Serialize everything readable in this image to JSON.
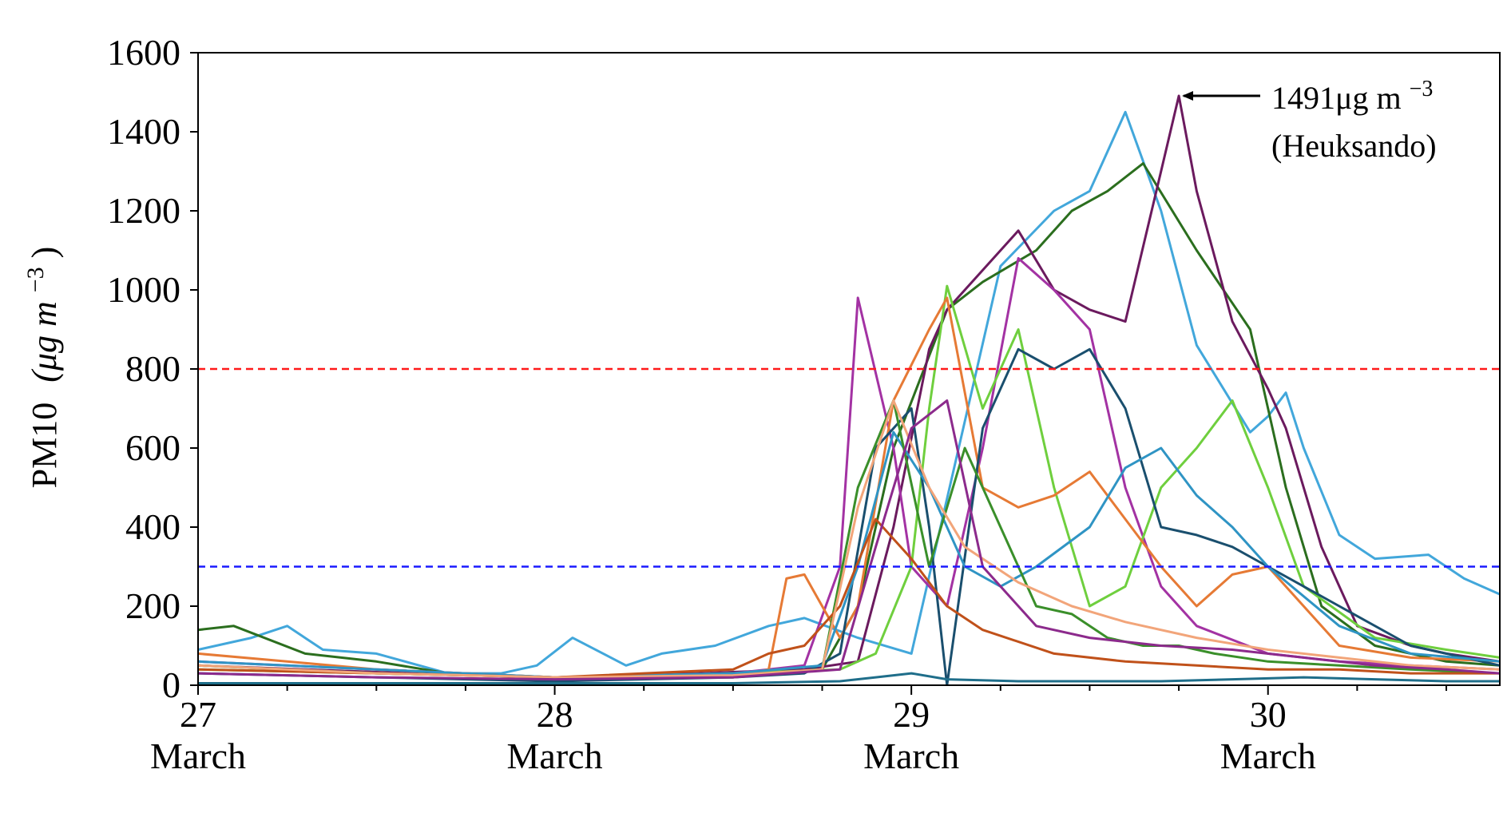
{
  "chart_data": {
    "type": "line",
    "title": "",
    "ylabel_main": "PM10",
    "ylabel_unit": "(μg m",
    "ylabel_exp": "−3",
    "ylabel_close": ")",
    "ylim": [
      0,
      1600
    ],
    "xlim": [
      0,
      3.65
    ],
    "grid": false,
    "yticks": [
      0,
      200,
      400,
      600,
      800,
      1000,
      1200,
      1400,
      1600
    ],
    "xticks": [
      {
        "x": 0,
        "day": "27",
        "month": "March"
      },
      {
        "x": 1,
        "day": "28",
        "month": "March"
      },
      {
        "x": 2,
        "day": "29",
        "month": "March"
      },
      {
        "x": 3,
        "day": "30",
        "month": "March"
      }
    ],
    "thresholds": [
      {
        "y": 800,
        "color": "#ff1a1a"
      },
      {
        "y": 300,
        "color": "#1a1aff"
      }
    ],
    "annotation": {
      "value_text": "1491μg m",
      "value_exp": "−3",
      "station": "(Heuksando)",
      "point": [
        2.75,
        1491
      ]
    },
    "series": [
      {
        "color": "#42a7db",
        "x": [
          0,
          0.15,
          0.25,
          0.35,
          0.5,
          0.7,
          0.85,
          0.95,
          1.05,
          1.2,
          1.3,
          1.45,
          1.6,
          1.7,
          1.85,
          2.0,
          2.25,
          2.4,
          2.5,
          2.55,
          2.6,
          2.7,
          2.8,
          2.95,
          3.0,
          3.05,
          3.1,
          3.2,
          3.3,
          3.45,
          3.55,
          3.65
        ],
        "y": [
          90,
          120,
          150,
          90,
          80,
          30,
          30,
          50,
          120,
          50,
          80,
          100,
          150,
          170,
          120,
          80,
          1060,
          1200,
          1250,
          1350,
          1450,
          1200,
          860,
          640,
          680,
          740,
          600,
          380,
          320,
          330,
          270,
          230
        ]
      },
      {
        "color": "#2b6e1e",
        "x": [
          0,
          0.1,
          0.3,
          0.5,
          0.7,
          1.0,
          1.3,
          1.6,
          1.75,
          1.85,
          1.95,
          2.1,
          2.2,
          2.35,
          2.45,
          2.55,
          2.65,
          2.8,
          2.95,
          3.05,
          3.15,
          3.3,
          3.5,
          3.65
        ],
        "y": [
          140,
          150,
          80,
          60,
          30,
          20,
          25,
          35,
          40,
          200,
          600,
          950,
          1020,
          1100,
          1200,
          1250,
          1320,
          1100,
          900,
          500,
          200,
          100,
          60,
          50
        ]
      },
      {
        "color": "#6b1a5e",
        "x": [
          0,
          0.3,
          0.6,
          1.0,
          1.4,
          1.7,
          1.85,
          1.95,
          2.05,
          2.1,
          2.2,
          2.3,
          2.4,
          2.5,
          2.6,
          2.7,
          2.75,
          2.8,
          2.9,
          3.0,
          3.05,
          3.15,
          3.25,
          3.4,
          3.5,
          3.65
        ],
        "y": [
          50,
          40,
          30,
          20,
          30,
          40,
          60,
          400,
          850,
          950,
          1050,
          1150,
          1000,
          950,
          920,
          1300,
          1491,
          1250,
          920,
          750,
          650,
          350,
          150,
          100,
          80,
          60
        ]
      },
      {
        "color": "#a332a3",
        "x": [
          0,
          0.5,
          1.0,
          1.5,
          1.7,
          1.8,
          1.85,
          1.95,
          2.0,
          2.1,
          2.2,
          2.3,
          2.4,
          2.5,
          2.6,
          2.7,
          2.8,
          3.0,
          3.2,
          3.4,
          3.65
        ],
        "y": [
          60,
          40,
          20,
          30,
          50,
          300,
          980,
          600,
          300,
          200,
          600,
          1080,
          1000,
          900,
          500,
          250,
          150,
          80,
          60,
          50,
          40
        ]
      },
      {
        "color": "#6fcf3e",
        "x": [
          0,
          0.5,
          1.0,
          1.5,
          1.8,
          1.9,
          2.0,
          2.05,
          2.1,
          2.2,
          2.3,
          2.4,
          2.5,
          2.6,
          2.7,
          2.8,
          2.9,
          3.0,
          3.1,
          3.3,
          3.5,
          3.65
        ],
        "y": [
          40,
          30,
          20,
          30,
          40,
          80,
          300,
          700,
          1010,
          700,
          900,
          500,
          200,
          250,
          500,
          600,
          720,
          500,
          250,
          120,
          90,
          70
        ]
      },
      {
        "color": "#e67a35",
        "x": [
          0,
          0.5,
          1.0,
          1.5,
          1.6,
          1.65,
          1.7,
          1.8,
          1.85,
          1.95,
          2.05,
          2.1,
          2.2,
          2.3,
          2.4,
          2.5,
          2.6,
          2.7,
          2.8,
          2.9,
          3.0,
          3.2,
          3.4,
          3.65
        ],
        "y": [
          80,
          40,
          20,
          20,
          40,
          270,
          280,
          120,
          200,
          720,
          900,
          980,
          500,
          450,
          480,
          540,
          420,
          300,
          200,
          280,
          300,
          100,
          70,
          60
        ]
      },
      {
        "color": "#1a4f6e",
        "x": [
          0,
          0.5,
          1.0,
          1.5,
          1.7,
          1.8,
          1.9,
          2.0,
          2.05,
          2.1,
          2.2,
          2.3,
          2.4,
          2.5,
          2.6,
          2.7,
          2.8,
          2.9,
          3.0,
          3.2,
          3.4,
          3.65
        ],
        "y": [
          30,
          20,
          10,
          20,
          30,
          80,
          600,
          700,
          400,
          0,
          650,
          850,
          800,
          850,
          700,
          400,
          380,
          350,
          300,
          200,
          100,
          50
        ]
      },
      {
        "color": "#2f94c4",
        "x": [
          0,
          0.5,
          1.0,
          1.5,
          1.75,
          1.85,
          1.95,
          2.05,
          2.15,
          2.25,
          2.35,
          2.5,
          2.6,
          2.7,
          2.8,
          2.9,
          3.0,
          3.2,
          3.4,
          3.65
        ],
        "y": [
          60,
          40,
          20,
          30,
          50,
          300,
          640,
          500,
          300,
          250,
          300,
          400,
          550,
          600,
          480,
          400,
          300,
          150,
          80,
          60
        ]
      },
      {
        "color": "#3a8f2a",
        "x": [
          0,
          0.5,
          1.0,
          1.5,
          1.75,
          1.85,
          1.95,
          2.05,
          2.15,
          2.25,
          2.35,
          2.45,
          2.55,
          2.65,
          2.75,
          2.85,
          3.0,
          3.2,
          3.4,
          3.65
        ],
        "y": [
          50,
          30,
          20,
          20,
          40,
          500,
          720,
          300,
          600,
          400,
          200,
          180,
          120,
          100,
          100,
          80,
          60,
          50,
          40,
          30
        ]
      },
      {
        "color": "#c0511a",
        "x": [
          0,
          0.5,
          1.0,
          1.5,
          1.6,
          1.7,
          1.8,
          1.9,
          2.0,
          2.1,
          2.2,
          2.4,
          2.6,
          2.8,
          3.0,
          3.2,
          3.4,
          3.65
        ],
        "y": [
          40,
          30,
          20,
          40,
          80,
          100,
          200,
          420,
          320,
          200,
          140,
          80,
          60,
          50,
          40,
          40,
          30,
          30
        ]
      },
      {
        "color": "#f2a57a",
        "x": [
          0,
          0.5,
          1.0,
          1.5,
          1.75,
          1.85,
          1.95,
          2.05,
          2.15,
          2.3,
          2.45,
          2.6,
          2.8,
          3.0,
          3.2,
          3.4,
          3.65
        ],
        "y": [
          50,
          30,
          20,
          25,
          40,
          450,
          720,
          500,
          350,
          260,
          200,
          160,
          120,
          90,
          70,
          50,
          40
        ]
      },
      {
        "color": "#1f6e8a",
        "x": [
          0,
          0.5,
          1.0,
          1.5,
          1.8,
          1.9,
          2.0,
          2.1,
          2.3,
          2.5,
          2.7,
          2.9,
          3.1,
          3.3,
          3.5,
          3.65
        ],
        "y": [
          5,
          5,
          5,
          5,
          10,
          20,
          30,
          15,
          10,
          10,
          10,
          15,
          20,
          15,
          10,
          10
        ]
      },
      {
        "color": "#8c2a8c",
        "x": [
          0,
          0.5,
          1.0,
          1.5,
          1.8,
          1.9,
          2.0,
          2.1,
          2.2,
          2.35,
          2.5,
          2.7,
          2.9,
          3.1,
          3.3,
          3.5,
          3.65
        ],
        "y": [
          30,
          20,
          15,
          20,
          40,
          350,
          650,
          720,
          300,
          150,
          120,
          100,
          90,
          70,
          50,
          40,
          30
        ]
      }
    ]
  }
}
